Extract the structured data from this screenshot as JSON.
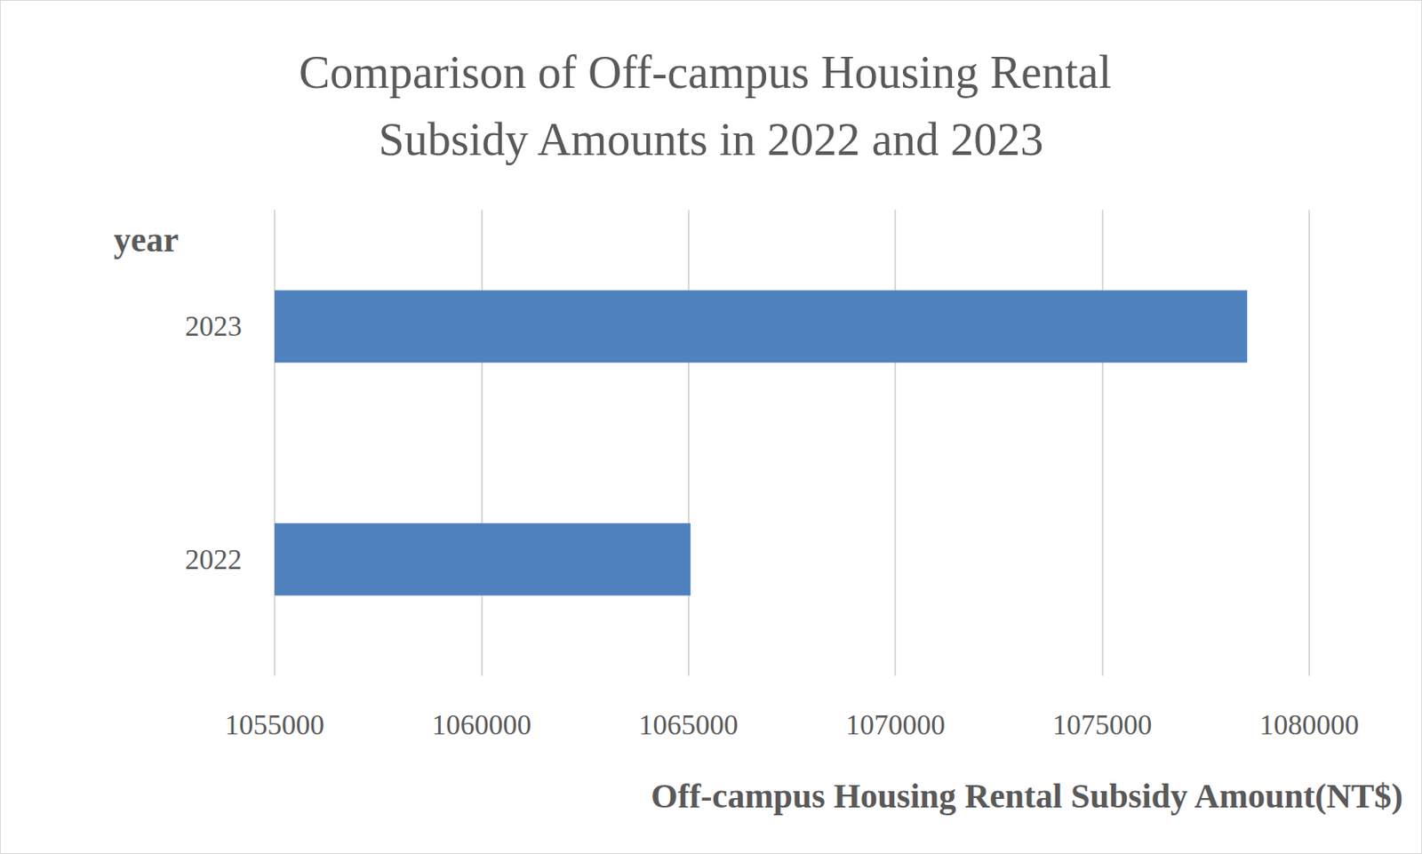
{
  "chart_data": {
    "type": "bar",
    "orientation": "horizontal",
    "title": "Comparison of Off-campus Housing Rental Subsidy Amounts in 2022 and 2023",
    "x_label": "Off-campus Housing Rental Subsidy Amount(NT$)",
    "y_label": "year",
    "categories": [
      "2022",
      "2023"
    ],
    "values": [
      1065050,
      1078500
    ],
    "color": "#4f81bd",
    "xlim": [
      1055000,
      1080000
    ],
    "xticks": [
      1055000,
      1060000,
      1065000,
      1070000,
      1075000,
      1080000
    ],
    "grid": true
  }
}
